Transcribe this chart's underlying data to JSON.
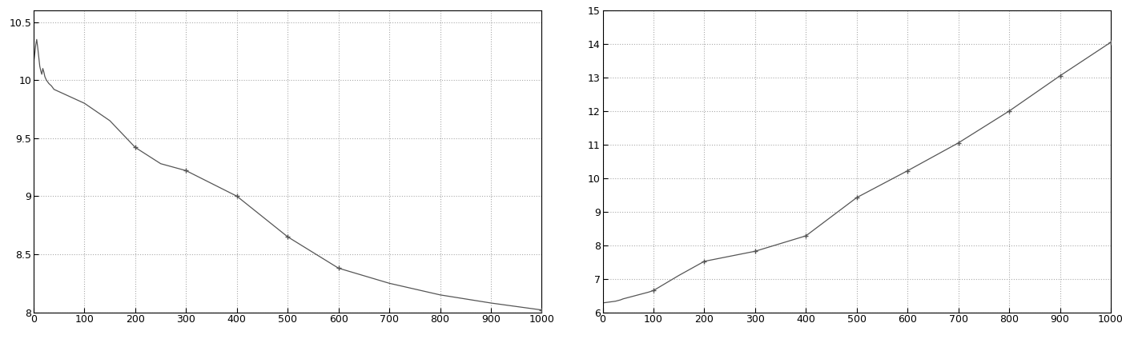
{
  "left": {
    "xlim": [
      0,
      1000
    ],
    "ylim": [
      8,
      10.6
    ],
    "yticks": [
      8,
      8.5,
      9,
      9.5,
      10,
      10.5
    ],
    "xticks": [
      0,
      100,
      200,
      300,
      400,
      500,
      600,
      700,
      800,
      900,
      1000
    ],
    "key_points": [
      [
        0,
        10.15
      ],
      [
        2,
        10.22
      ],
      [
        4,
        10.3
      ],
      [
        6,
        10.35
      ],
      [
        8,
        10.28
      ],
      [
        10,
        10.2
      ],
      [
        12,
        10.12
      ],
      [
        14,
        10.08
      ],
      [
        16,
        10.05
      ],
      [
        18,
        10.1
      ],
      [
        20,
        10.07
      ],
      [
        22,
        10.03
      ],
      [
        25,
        10.0
      ],
      [
        30,
        9.97
      ],
      [
        35,
        9.95
      ],
      [
        40,
        9.92
      ],
      [
        50,
        9.9
      ],
      [
        60,
        9.88
      ],
      [
        70,
        9.86
      ],
      [
        80,
        9.84
      ],
      [
        90,
        9.82
      ],
      [
        100,
        9.8
      ],
      [
        150,
        9.65
      ],
      [
        200,
        9.42
      ],
      [
        250,
        9.28
      ],
      [
        300,
        9.22
      ],
      [
        400,
        9.0
      ],
      [
        500,
        8.65
      ],
      [
        600,
        8.38
      ],
      [
        700,
        8.25
      ],
      [
        800,
        8.15
      ],
      [
        900,
        8.08
      ],
      [
        1000,
        8.02
      ]
    ],
    "marker_points": [
      [
        200,
        9.42
      ],
      [
        300,
        9.22
      ],
      [
        400,
        9.0
      ],
      [
        500,
        8.65
      ],
      [
        600,
        8.38
      ],
      [
        1000,
        8.02
      ]
    ],
    "line_color": "#555555",
    "marker_color": "#555555"
  },
  "right": {
    "xlim": [
      0,
      1000
    ],
    "ylim": [
      6,
      15
    ],
    "yticks": [
      6,
      7,
      8,
      9,
      10,
      11,
      12,
      13,
      14,
      15
    ],
    "xticks": [
      0,
      100,
      200,
      300,
      400,
      500,
      600,
      700,
      800,
      900,
      1000
    ],
    "key_points": [
      [
        0,
        6.28
      ],
      [
        5,
        6.29
      ],
      [
        10,
        6.3
      ],
      [
        15,
        6.31
      ],
      [
        20,
        6.32
      ],
      [
        25,
        6.33
      ],
      [
        30,
        6.35
      ],
      [
        35,
        6.37
      ],
      [
        40,
        6.4
      ],
      [
        45,
        6.42
      ],
      [
        50,
        6.44
      ],
      [
        55,
        6.46
      ],
      [
        60,
        6.48
      ],
      [
        70,
        6.52
      ],
      [
        80,
        6.56
      ],
      [
        90,
        6.6
      ],
      [
        100,
        6.65
      ],
      [
        150,
        7.1
      ],
      [
        200,
        7.52
      ],
      [
        300,
        7.82
      ],
      [
        400,
        8.28
      ],
      [
        500,
        9.42
      ],
      [
        600,
        10.22
      ],
      [
        700,
        11.05
      ],
      [
        800,
        12.0
      ],
      [
        900,
        13.05
      ],
      [
        1000,
        14.05
      ]
    ],
    "marker_points": [
      [
        100,
        6.65
      ],
      [
        200,
        7.52
      ],
      [
        300,
        7.82
      ],
      [
        400,
        8.28
      ],
      [
        500,
        9.42
      ],
      [
        600,
        10.22
      ],
      [
        700,
        11.05
      ],
      [
        800,
        12.0
      ],
      [
        900,
        13.05
      ],
      [
        1000,
        14.05
      ]
    ],
    "line_color": "#555555",
    "marker_color": "#555555"
  },
  "background_color": "#ffffff",
  "grid_color": "#aaaaaa",
  "grid_linestyle": ":",
  "grid_linewidth": 0.8
}
